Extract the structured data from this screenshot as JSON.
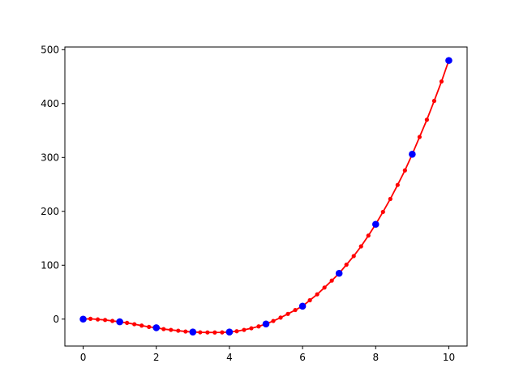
{
  "chart_data": {
    "type": "line",
    "title": "",
    "xlabel": "",
    "ylabel": "",
    "xlim": [
      -0.5,
      10.5
    ],
    "ylim": [
      -50,
      505
    ],
    "xticks": [
      0,
      2,
      4,
      6,
      8,
      10
    ],
    "yticks": [
      0,
      100,
      200,
      300,
      400,
      500
    ],
    "grid": false,
    "series": [
      {
        "kind": "dense-line",
        "color": "#ff0000",
        "marker": "small-dot",
        "x": [
          0,
          0.2,
          0.4,
          0.6,
          0.8,
          1.0,
          1.2,
          1.4,
          1.6,
          1.8,
          2.0,
          2.2,
          2.4,
          2.6,
          2.8,
          3.0,
          3.2,
          3.4,
          3.6,
          3.8,
          4.0,
          4.2,
          4.4,
          4.6,
          4.8,
          5.0,
          5.2,
          5.4,
          5.6,
          5.8,
          6.0,
          6.2,
          6.4,
          6.6,
          6.8,
          7.0,
          7.2,
          7.4,
          7.6,
          7.8,
          8.0,
          8.2,
          8.4,
          8.6,
          8.8,
          9.0,
          9.2,
          9.4,
          9.6,
          9.8,
          10.0
        ],
        "y": [
          0,
          0.6,
          -0.6,
          -1.6,
          -3.4,
          -5,
          -7,
          -9.5,
          -12,
          -14.5,
          -16,
          -18.5,
          -20,
          -21.5,
          -23,
          -24,
          -24.5,
          -24.7,
          -24.8,
          -24.6,
          -24,
          -22.5,
          -20,
          -17,
          -13.5,
          -9,
          -3.5,
          2.8,
          9.7,
          16.8,
          24,
          35,
          46,
          58.6,
          71.5,
          85,
          101,
          117,
          135,
          155,
          176,
          199,
          223,
          249,
          276,
          306,
          338,
          370,
          405,
          441,
          480
        ]
      },
      {
        "kind": "markers",
        "color": "#0000ff",
        "marker": "large-dot",
        "x": [
          0,
          1,
          2,
          3,
          4,
          5,
          6,
          7,
          8,
          9,
          10
        ],
        "y": [
          0,
          -5,
          -16,
          -24,
          -24,
          -9,
          24,
          85,
          176,
          306,
          480
        ]
      }
    ]
  }
}
